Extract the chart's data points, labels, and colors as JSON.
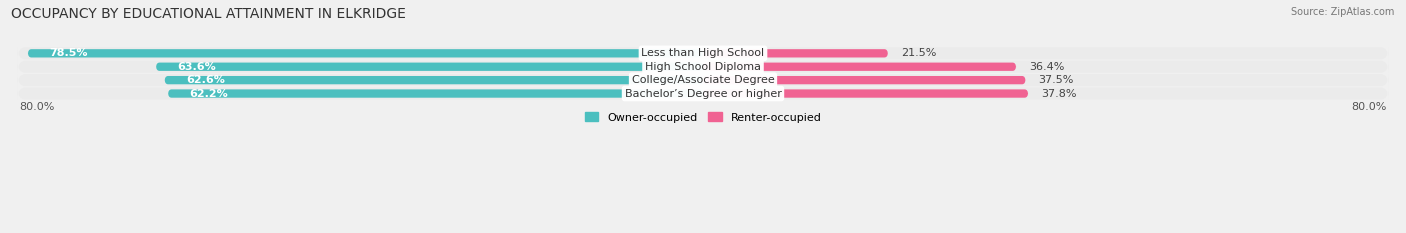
{
  "title": "OCCUPANCY BY EDUCATIONAL ATTAINMENT IN ELKRIDGE",
  "source": "Source: ZipAtlas.com",
  "categories": [
    "Less than High School",
    "High School Diploma",
    "College/Associate Degree",
    "Bachelor’s Degree or higher"
  ],
  "owner_values": [
    78.5,
    63.6,
    62.6,
    62.2
  ],
  "renter_values": [
    21.5,
    36.4,
    37.5,
    37.8
  ],
  "owner_color": "#4BBFBF",
  "renter_color": "#F06292",
  "renter_color_light": "#F8BBD9",
  "xlim_left": -80.0,
  "xlim_right": 80.0,
  "axis_left_label": "80.0%",
  "axis_right_label": "80.0%",
  "legend_owner": "Owner-occupied",
  "legend_renter": "Renter-occupied",
  "bar_height": 0.62,
  "row_bg_color": "#EBEBEB",
  "background_color": "#f0f0f0",
  "title_fontsize": 10,
  "label_fontsize": 8,
  "value_fontsize": 8
}
